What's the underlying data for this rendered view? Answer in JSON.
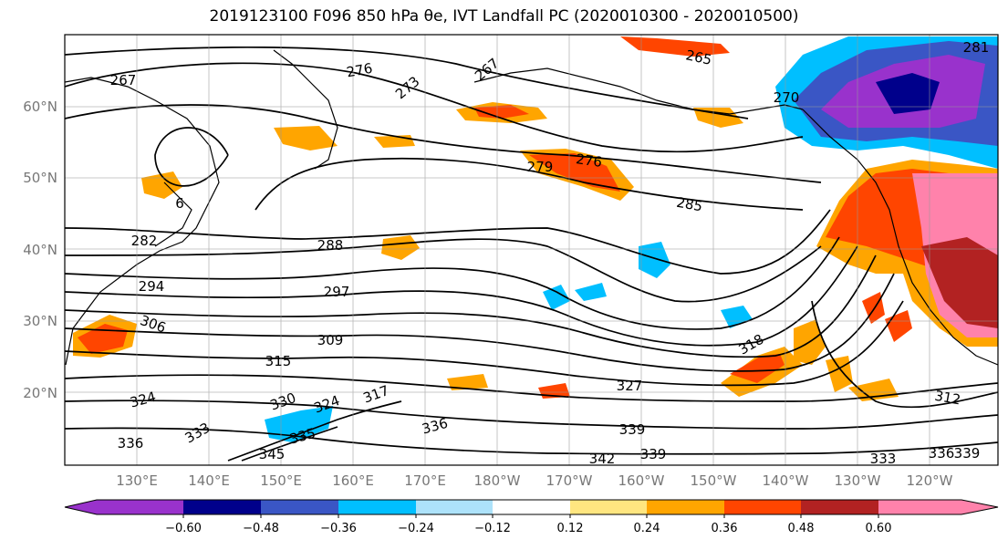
{
  "title": "2019123100 F096 850 hPa θe, IVT Landfall PC (2020010300 - 2020010500)",
  "lat_labels": [
    "60°N",
    "50°N",
    "40°N",
    "30°N",
    "20°N"
  ],
  "lon_labels": [
    "130°E",
    "140°E",
    "150°E",
    "160°E",
    "170°E",
    "180°W",
    "170°W",
    "160°W",
    "150°W",
    "140°W",
    "130°W",
    "120°W"
  ],
  "contour_labels": [
    "267",
    "276",
    "273",
    "267",
    "265",
    "281",
    "270",
    "6",
    "279",
    "276",
    "285",
    "282",
    "288",
    "294",
    "297",
    "306",
    "309",
    "315",
    "318",
    "312",
    "327",
    "324",
    "330",
    "324",
    "317",
    "336",
    "333",
    "336",
    "335",
    "342",
    "339",
    "345",
    "339",
    "336",
    "339",
    "333"
  ],
  "colorbar": {
    "colors": [
      "#9932CC",
      "#00008B",
      "#3A56C5",
      "#00BFFF",
      "#ADE2FA",
      "#FFFFFF",
      "#FFE680",
      "#FFA500",
      "#FF4500",
      "#B22222",
      "#FF82AB"
    ],
    "tick_labels": [
      "−0.60",
      "−0.48",
      "−0.36",
      "−0.24",
      "−0.12",
      "0.12",
      "0.24",
      "0.36",
      "0.48",
      "0.60"
    ]
  }
}
